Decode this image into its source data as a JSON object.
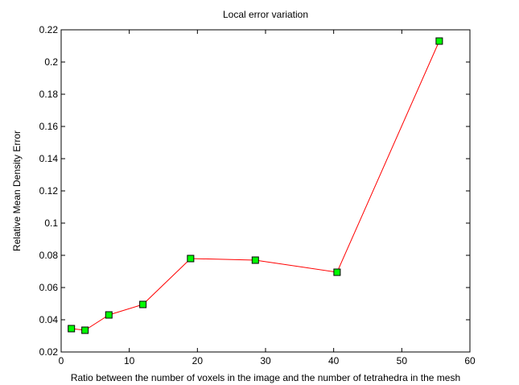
{
  "chart_data": {
    "type": "line",
    "title": "Local error variation",
    "xlabel": "Ratio between the number of voxels in the image and the number of tetrahedra in the mesh",
    "ylabel": "Relative Mean Density Error",
    "xlim": [
      0,
      60
    ],
    "ylim": [
      0.02,
      0.22
    ],
    "x_ticks": [
      0,
      10,
      20,
      30,
      40,
      50,
      60
    ],
    "y_ticks": [
      0.02,
      0.04,
      0.06,
      0.08,
      0.1,
      0.12,
      0.14,
      0.16,
      0.18,
      0.2,
      0.22
    ],
    "x_tick_labels": [
      "0",
      "10",
      "20",
      "30",
      "40",
      "50",
      "60"
    ],
    "y_tick_labels": [
      "0.02",
      "0.04",
      "0.06",
      "0.08",
      "0.1",
      "0.12",
      "0.14",
      "0.16",
      "0.18",
      "0.2",
      "0.22"
    ],
    "grid": false,
    "series": [
      {
        "x": [
          1.5,
          3.5,
          7,
          12,
          19,
          28.5,
          40.5,
          55.5
        ],
        "y": [
          0.0345,
          0.0335,
          0.043,
          0.0495,
          0.078,
          0.077,
          0.0695,
          0.213
        ],
        "line_color": "#ff0000",
        "marker": "square",
        "marker_color": "#00ff00",
        "marker_edge_color": "#000000"
      }
    ]
  }
}
